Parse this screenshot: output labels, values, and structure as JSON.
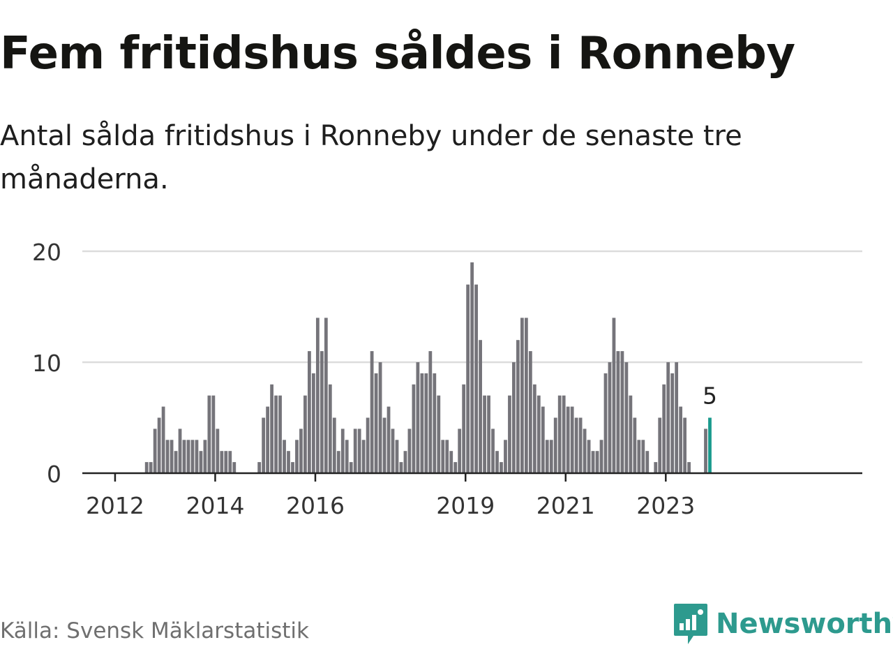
{
  "header": {
    "title": "Fem fritidshus såldes i Ronneby",
    "subtitle": "Antal sålda fritidshus i Ronneby under de senaste tre månaderna."
  },
  "footer": {
    "source": "Källa: Svensk Mäklarstatistik",
    "brand": "Newsworthy"
  },
  "colors": {
    "bar": "#75747a",
    "highlight": "#1a9a8d",
    "grid": "#dcdcdc",
    "axis": "#222222",
    "brand": "#2d9a8e"
  },
  "chart_data": {
    "type": "bar",
    "title": "Fem fritidshus såldes i Ronneby",
    "xlabel": "",
    "ylabel": "",
    "ylim": [
      0,
      20
    ],
    "yticks": [
      0,
      10,
      20
    ],
    "grid": true,
    "start": "2011-10",
    "xtick_labels": [
      {
        "label": "2012",
        "date": "2012-01"
      },
      {
        "label": "2014",
        "date": "2014-01"
      },
      {
        "label": "2016",
        "date": "2016-01"
      },
      {
        "label": "2019",
        "date": "2019-01"
      },
      {
        "label": "2021",
        "date": "2021-01"
      },
      {
        "label": "2023",
        "date": "2023-01"
      }
    ],
    "values": [
      0,
      0,
      0,
      0,
      0,
      0,
      0,
      0,
      0,
      0,
      1,
      1,
      4,
      5,
      6,
      3,
      3,
      2,
      4,
      3,
      3,
      3,
      3,
      2,
      3,
      7,
      7,
      4,
      2,
      2,
      2,
      1,
      0,
      0,
      0,
      0,
      0,
      1,
      5,
      6,
      8,
      7,
      7,
      3,
      2,
      1,
      3,
      4,
      7,
      11,
      9,
      14,
      11,
      14,
      8,
      5,
      2,
      4,
      3,
      1,
      4,
      4,
      3,
      5,
      11,
      9,
      10,
      5,
      6,
      4,
      3,
      1,
      2,
      4,
      8,
      10,
      9,
      9,
      11,
      9,
      7,
      3,
      3,
      2,
      1,
      4,
      8,
      17,
      19,
      17,
      12,
      7,
      7,
      4,
      2,
      1,
      3,
      7,
      10,
      12,
      14,
      14,
      11,
      8,
      7,
      6,
      3,
      3,
      5,
      7,
      7,
      6,
      6,
      5,
      5,
      4,
      3,
      2,
      2,
      3,
      9,
      10,
      14,
      11,
      11,
      10,
      7,
      5,
      3,
      3,
      2,
      0,
      1,
      5,
      8,
      10,
      9,
      10,
      6,
      5,
      1,
      0,
      0,
      0,
      4,
      5
    ],
    "highlight_label": "5"
  }
}
